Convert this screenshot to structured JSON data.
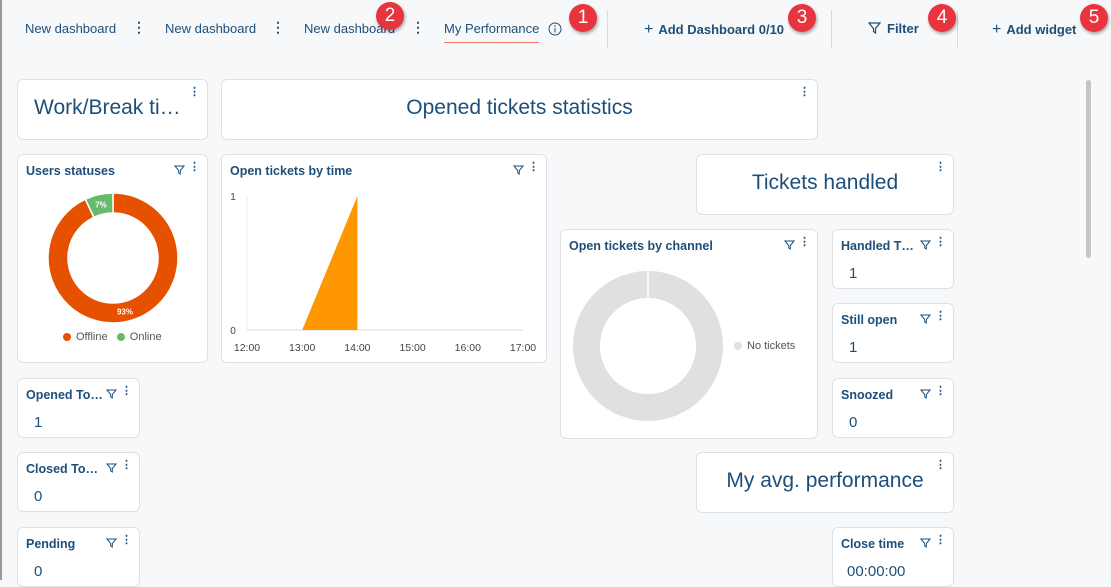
{
  "tabs": [
    {
      "label": "New dashboard"
    },
    {
      "label": "New dashboard"
    },
    {
      "label": "New dashboard"
    },
    {
      "label": "My Performance",
      "active": true
    }
  ],
  "actions": {
    "add_dashboard": "Add Dashboard 0/10",
    "filter": "Filter",
    "add_widget": "Add widget"
  },
  "badges": [
    "1",
    "2",
    "3",
    "4",
    "5"
  ],
  "widgets": {
    "work_break": "Work/Break ti…",
    "opened_stats": "Opened tickets statistics",
    "tickets_handled": "Tickets handled",
    "my_avg": "My avg. performance",
    "users_statuses": "Users statuses",
    "open_by_time": "Open tickets by time",
    "open_by_channel": "Open tickets by channel",
    "no_tickets": "No tickets",
    "handled_today": {
      "label": "Handled T…",
      "value": "1"
    },
    "still_open": {
      "label": "Still open",
      "value": "1"
    },
    "snoozed": {
      "label": "Snoozed",
      "value": "0"
    },
    "opened_today": {
      "label": "Opened To…",
      "value": "1"
    },
    "closed_today": {
      "label": "Closed To…",
      "value": "0"
    },
    "pending": {
      "label": "Pending",
      "value": "0"
    },
    "close_time": {
      "label": "Close time",
      "value": "00:00:00"
    }
  },
  "colors": {
    "offline": "#e65100",
    "online": "#66bb6a",
    "area": "#ff9800",
    "empty": "#e0e0e0",
    "badge": "#e8343e"
  },
  "chart_data": [
    {
      "type": "pie",
      "title": "Users statuses",
      "categories": [
        "Offline",
        "Online"
      ],
      "values": [
        93,
        7
      ],
      "labels": [
        "93%",
        "7%"
      ]
    },
    {
      "type": "area",
      "title": "Open tickets by time",
      "x": [
        "12:00",
        "13:00",
        "14:00",
        "15:00",
        "16:00",
        "17:00"
      ],
      "points": [
        [
          12,
          0
        ],
        [
          13,
          0
        ],
        [
          14,
          1
        ],
        [
          14,
          0
        ]
      ],
      "yticks": [
        "0",
        "1"
      ],
      "ylim": [
        0,
        1
      ]
    },
    {
      "type": "pie",
      "title": "Open tickets by channel",
      "categories": [
        "No tickets"
      ],
      "values": [
        1
      ]
    }
  ]
}
